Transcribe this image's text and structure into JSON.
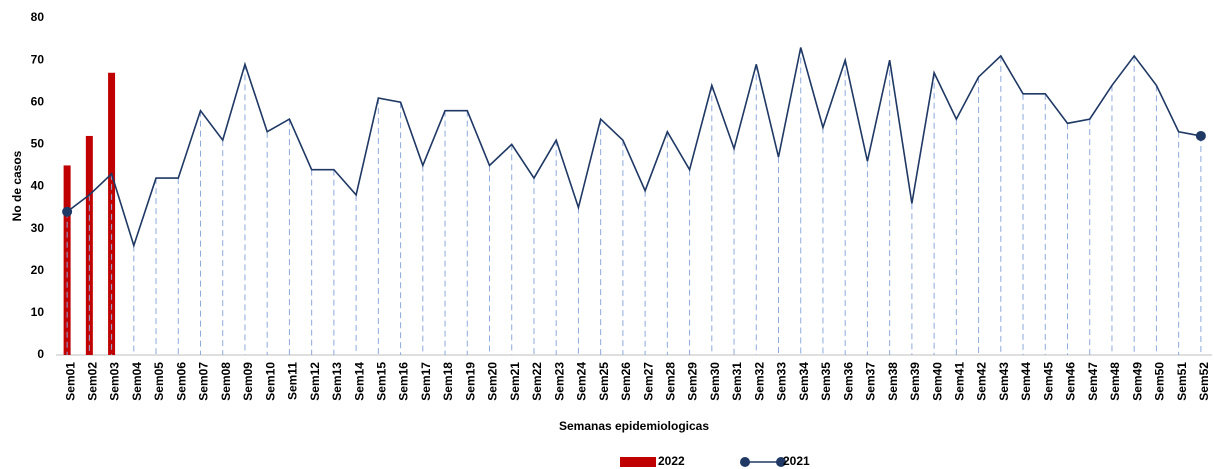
{
  "chart_data": {
    "type": "bar_line",
    "y_label": "No de casos",
    "x_label": "Semanas epidemiologicas",
    "categories": [
      "Sem01",
      "Sem02",
      "Sem03",
      "Sem04",
      "Sem05",
      "Sem06",
      "Sem07",
      "Sem08",
      "Sem09",
      "Sem10",
      "Sem11",
      "Sem12",
      "Sem13",
      "Sem14",
      "Sem15",
      "Sem16",
      "Sem17",
      "Sem18",
      "Sem19",
      "Sem20",
      "Sem21",
      "Sem22",
      "Sem23",
      "Sem24",
      "Sem25",
      "Sem26",
      "Sem27",
      "Sem28",
      "Sem29",
      "Sem30",
      "Sem31",
      "Sem32",
      "Sem33",
      "Sem34",
      "Sem35",
      "Sem36",
      "Sem37",
      "Sem38",
      "Sem39",
      "Sem40",
      "Sem41",
      "Sem42",
      "Sem43",
      "Sem44",
      "Sem45",
      "Sem46",
      "Sem47",
      "Sem48",
      "Sem49",
      "Sem50",
      "Sem51",
      "Sem52"
    ],
    "series": [
      {
        "name": "2022",
        "type": "bar",
        "color": "#c00000",
        "values": [
          45,
          52,
          67,
          null,
          null,
          null,
          null,
          null,
          null,
          null,
          null,
          null,
          null,
          null,
          null,
          null,
          null,
          null,
          null,
          null,
          null,
          null,
          null,
          null,
          null,
          null,
          null,
          null,
          null,
          null,
          null,
          null,
          null,
          null,
          null,
          null,
          null,
          null,
          null,
          null,
          null,
          null,
          null,
          null,
          null,
          null,
          null,
          null,
          null,
          null,
          null,
          null
        ]
      },
      {
        "name": "2021",
        "type": "line",
        "color": "#1f3864",
        "drop_color": "#8faadc",
        "values": [
          34,
          38,
          43,
          26,
          42,
          42,
          58,
          51,
          69,
          53,
          56,
          44,
          44,
          38,
          61,
          60,
          45,
          58,
          58,
          45,
          50,
          42,
          51,
          35,
          56,
          51,
          39,
          53,
          44,
          64,
          49,
          69,
          47,
          73,
          54,
          70,
          46,
          70,
          36,
          67,
          56,
          66,
          71,
          62,
          62,
          55,
          56,
          64,
          71,
          64,
          53,
          52
        ]
      }
    ],
    "ylim": [
      0,
      80
    ],
    "yticks": [
      0,
      10,
      20,
      30,
      40,
      50,
      60,
      70,
      80
    ],
    "grid": false,
    "legend": "bottom"
  }
}
